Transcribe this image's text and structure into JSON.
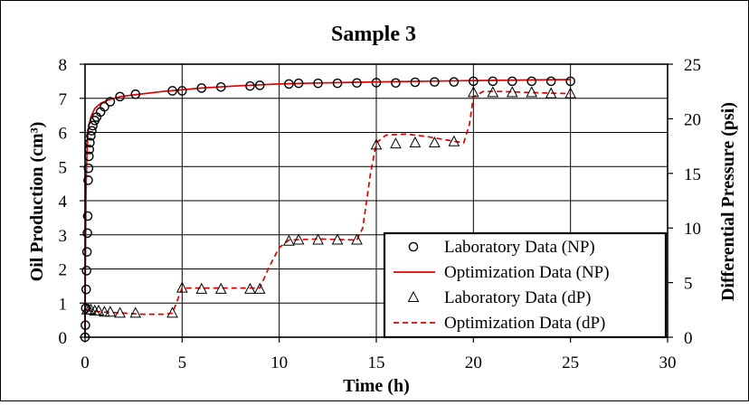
{
  "chart_data": {
    "type": "line",
    "title": "Sample 3",
    "xlabel": "Time (h)",
    "ylabel_left": "Oil Production (cm³)",
    "ylabel_right": "Differential Pressure (psi)",
    "xlim": [
      0,
      30
    ],
    "xticks": [
      0,
      5,
      10,
      15,
      20,
      25,
      30
    ],
    "ylim_left": [
      0,
      8
    ],
    "yticks_left": [
      0,
      1,
      2,
      3,
      4,
      5,
      6,
      7,
      8
    ],
    "ylim_right": [
      0,
      25
    ],
    "yticks_right": [
      0,
      5,
      10,
      15,
      20,
      25
    ],
    "grid": true,
    "legend_position": "bottom-right",
    "series": [
      {
        "name": "Laboratory Data (NP)",
        "axis": "left",
        "style": "circle-marker",
        "color": "#000000",
        "x": [
          0,
          0.02,
          0.04,
          0.06,
          0.08,
          0.1,
          0.12,
          0.14,
          0.16,
          0.18,
          0.2,
          0.22,
          0.25,
          0.3,
          0.35,
          0.4,
          0.5,
          0.6,
          0.8,
          1.0,
          1.3,
          1.8,
          2.6,
          4.5,
          5.0,
          6.0,
          7.0,
          8.5,
          9.0,
          10.5,
          11.0,
          12.0,
          13.0,
          14.0,
          15.0,
          16.0,
          17.0,
          18.0,
          19.0,
          20.0,
          21.0,
          22.0,
          23.0,
          24.0,
          25.0
        ],
        "values": [
          0.0,
          0.35,
          0.85,
          1.4,
          1.95,
          2.5,
          3.05,
          3.55,
          4.6,
          4.95,
          5.3,
          5.5,
          5.7,
          5.9,
          6.05,
          6.2,
          6.35,
          6.45,
          6.6,
          6.75,
          6.9,
          7.05,
          7.12,
          7.22,
          7.22,
          7.3,
          7.33,
          7.36,
          7.38,
          7.42,
          7.44,
          7.44,
          7.44,
          7.45,
          7.46,
          7.45,
          7.47,
          7.48,
          7.48,
          7.5,
          7.5,
          7.5,
          7.5,
          7.5,
          7.5
        ]
      },
      {
        "name": "Optimization Data (NP)",
        "axis": "left",
        "style": "solid-line",
        "color": "#e00000",
        "x": [
          0,
          0.02,
          0.05,
          0.1,
          0.15,
          0.2,
          0.3,
          0.5,
          0.8,
          1.2,
          1.8,
          2.5,
          4.0,
          6.0,
          8.0,
          10.0,
          12.0,
          15.0,
          20.0,
          25.0
        ],
        "values": [
          0.0,
          2.0,
          4.3,
          5.4,
          5.9,
          6.2,
          6.45,
          6.7,
          6.85,
          6.95,
          7.05,
          7.1,
          7.2,
          7.3,
          7.37,
          7.42,
          7.45,
          7.48,
          7.52,
          7.55
        ]
      },
      {
        "name": "Laboratory Data (dP)",
        "axis": "right",
        "style": "triangle-marker",
        "color": "#000000",
        "x": [
          0.1,
          0.2,
          0.3,
          0.5,
          0.7,
          1.0,
          1.3,
          1.8,
          2.6,
          4.5,
          5.0,
          6.0,
          7.0,
          8.5,
          9.0,
          10.5,
          11.0,
          12.0,
          13.0,
          14.0,
          15.0,
          16.0,
          17.0,
          18.0,
          19.0,
          20.0,
          21.0,
          22.0,
          23.0,
          24.0,
          25.0
        ],
        "values": [
          2.5,
          2.5,
          2.5,
          2.4,
          2.4,
          2.3,
          2.3,
          2.2,
          2.2,
          2.2,
          4.5,
          4.4,
          4.4,
          4.4,
          4.4,
          8.8,
          8.9,
          8.9,
          8.9,
          8.9,
          17.6,
          17.7,
          17.8,
          17.8,
          17.9,
          22.4,
          22.4,
          22.4,
          22.4,
          22.3,
          22.3
        ]
      },
      {
        "name": "Optimization Data (dP)",
        "axis": "right",
        "style": "dashed-line",
        "color": "#e00000",
        "x": [
          0.05,
          0.3,
          1.0,
          2.0,
          3.0,
          4.0,
          4.5,
          5.0,
          5.5,
          7.0,
          9.0,
          9.5,
          10.0,
          10.5,
          12.0,
          14.0,
          14.3,
          14.7,
          15.0,
          15.5,
          16.5,
          17.5,
          18.5,
          19.5,
          19.8,
          20.0,
          20.5,
          21.5,
          23.0,
          25.0
        ],
        "values": [
          2.5,
          2.4,
          2.3,
          2.2,
          2.1,
          2.1,
          2.2,
          4.5,
          4.5,
          4.5,
          4.5,
          6.5,
          8.2,
          8.9,
          9.0,
          8.9,
          10.0,
          15.0,
          17.8,
          18.5,
          18.6,
          18.4,
          18.1,
          17.8,
          19.5,
          22.0,
          22.5,
          22.5,
          22.4,
          22.3
        ]
      }
    ]
  }
}
